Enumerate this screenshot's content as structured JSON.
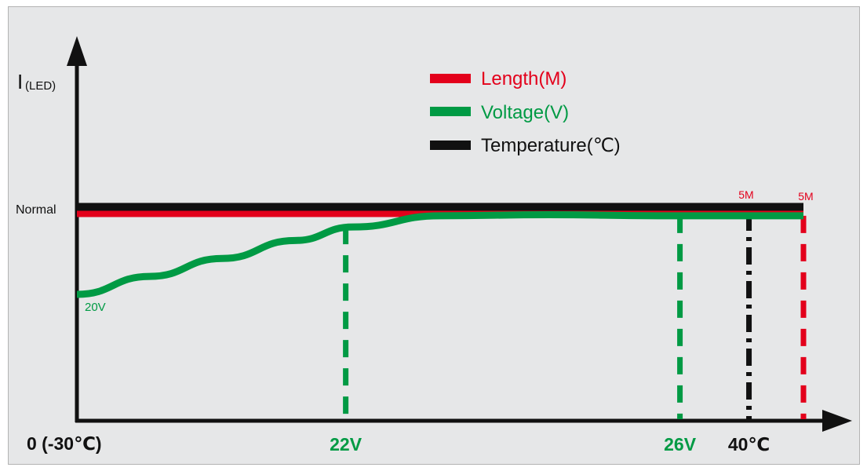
{
  "chart_data": {
    "type": "line",
    "ylabel": "I",
    "ylabel_sub": "(LED)",
    "y_level_label": "Normal",
    "x_origin_label": "0 (-30℃)",
    "legend": {
      "placement": "top-center",
      "entries": [
        {
          "label": "Length(M)",
          "color": "#e3001b"
        },
        {
          "label": "Voltage(V)",
          "color": "#009a44"
        },
        {
          "label": "Temperature(℃)",
          "color": "#111111"
        }
      ]
    },
    "series": [
      {
        "name": "Length(M)",
        "color": "#e3001b",
        "level": 0.93,
        "end_x": 1.0,
        "end_label": "5M"
      },
      {
        "name": "Voltage(V)",
        "color": "#009a44",
        "points": [
          [
            0,
            0.57
          ],
          [
            0.1,
            0.65
          ],
          [
            0.2,
            0.73
          ],
          [
            0.3,
            0.81
          ],
          [
            0.38,
            0.87
          ],
          [
            0.5,
            0.92
          ],
          [
            0.65,
            0.925
          ],
          [
            0.8,
            0.92
          ],
          [
            1.0,
            0.92
          ]
        ],
        "start_label": "20V"
      },
      {
        "name": "Temperature(℃)",
        "color": "#111111",
        "level": 0.96,
        "end_x": 1.0,
        "end_label": "5M"
      }
    ],
    "markers": [
      {
        "x": 0.37,
        "label": "22V",
        "color": "#009a44",
        "style": "dashed",
        "top_level": 0.87
      },
      {
        "x": 0.83,
        "label": "26V",
        "color": "#009a44",
        "style": "dashed",
        "top_level": 0.92
      },
      {
        "x": 0.925,
        "label": "40℃",
        "color": "#111111",
        "style": "dashdot",
        "top_level": 0.93
      },
      {
        "x": 1.0,
        "label": "",
        "color": "#e3001b",
        "style": "dashed",
        "top_level": 0.92
      }
    ],
    "xlim": [
      0,
      1
    ],
    "ylim": [
      0,
      1
    ],
    "grid": false
  }
}
